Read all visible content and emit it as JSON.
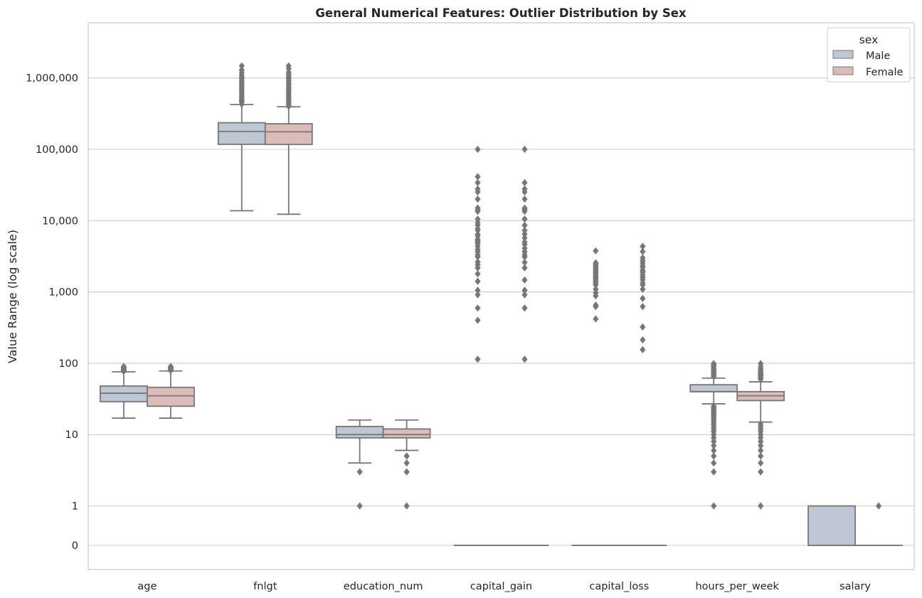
{
  "chart_data": {
    "type": "box",
    "title": "General Numerical Features: Outlier Distribution by Sex",
    "xlabel": "",
    "ylabel": "Value Range (log scale)",
    "yscale": "symlog",
    "grid": true,
    "legend": {
      "title": "sex",
      "placement": "top-right",
      "entries": [
        {
          "name": "Male",
          "color": "#bfc6d4"
        },
        {
          "name": "Female",
          "color": "#dcbcb9"
        }
      ]
    },
    "y_ticks": [
      {
        "value": 0,
        "label": "0"
      },
      {
        "value": 1,
        "label": "1"
      },
      {
        "value": 10,
        "label": "10"
      },
      {
        "value": 100,
        "label": "100"
      },
      {
        "value": 1000,
        "label": "1,000"
      },
      {
        "value": 10000,
        "label": "10,000"
      },
      {
        "value": 100000,
        "label": "100,000"
      },
      {
        "value": 1000000,
        "label": "1,000,000"
      }
    ],
    "categories": [
      "age",
      "fnlgt",
      "education_num",
      "capital_gain",
      "capital_loss",
      "hours_per_week",
      "salary"
    ],
    "series": [
      {
        "name": "Male",
        "boxes": [
          {
            "whislo": 17,
            "q1": 29,
            "med": 38,
            "q3": 48,
            "whishi": 76,
            "fliers": [
              77,
              78,
              79,
              80,
              81,
              82,
              83,
              84,
              85,
              86,
              87,
              88,
              90
            ]
          },
          {
            "whislo": 13769,
            "q1": 117500,
            "med": 178000,
            "q3": 236000,
            "whishi": 425000,
            "fliers": [
              430000,
              460000,
              480000,
              500000,
              530000,
              560000,
              600000,
              640000,
              680000,
              720000,
              760000,
              810000,
              860000,
              920000,
              980000,
              1030000,
              1100000,
              1200000,
              1300000,
              1480000
            ]
          },
          {
            "whislo": 4,
            "q1": 9,
            "med": 10,
            "q3": 13,
            "whishi": 16,
            "fliers": [
              3,
              1
            ]
          },
          {
            "whislo": 0,
            "q1": 0,
            "med": 0,
            "q3": 0,
            "whishi": 0,
            "fliers": [
              114,
              401,
              594,
              914,
              1055,
              1409,
              1797,
              2174,
              2407,
              2635,
              3103,
              3325,
              3674,
              3942,
              4386,
              4787,
              5013,
              5178,
              5455,
              6097,
              6418,
              7298,
              7688,
              8614,
              9386,
              10520,
              13550,
              14084,
              15024,
              20051,
              25236,
              27828,
              34095,
              41310,
              99999
            ]
          },
          {
            "whislo": 0,
            "q1": 0,
            "med": 0,
            "q3": 0,
            "whishi": 0,
            "fliers": [
              419,
              625,
              653,
              880,
              974,
              1092,
              1258,
              1340,
              1408,
              1485,
              1564,
              1602,
              1669,
              1740,
              1848,
              1902,
              1977,
              2042,
              2149,
              2258,
              2352,
              2444,
              2559,
              3770
            ]
          },
          {
            "whislo": 27,
            "q1": 40,
            "med": 40,
            "q3": 50,
            "whishi": 62,
            "fliers": [
              1,
              3,
              4,
              5,
              6,
              7,
              8,
              9,
              10,
              11,
              12,
              13,
              14,
              15,
              16,
              17,
              18,
              19,
              20,
              21,
              22,
              23,
              24,
              25,
              65,
              68,
              70,
              72,
              75,
              78,
              80,
              84,
              89,
              92,
              96,
              99
            ]
          },
          {
            "whislo": 0,
            "q1": 0,
            "med": 0,
            "q3": 1,
            "whishi": 1,
            "fliers": []
          }
        ]
      },
      {
        "name": "Female",
        "boxes": [
          {
            "whislo": 17,
            "q1": 25,
            "med": 35,
            "q3": 46,
            "whishi": 78,
            "fliers": [
              79,
              80,
              81,
              82,
              84,
              85,
              86,
              88,
              90
            ]
          },
          {
            "whislo": 12285,
            "q1": 117000,
            "med": 176000,
            "q3": 228000,
            "whishi": 395000,
            "fliers": [
              400000,
              420000,
              450000,
              480000,
              510000,
              540000,
              580000,
              620000,
              660000,
              700000,
              750000,
              800000,
              860000,
              920000,
              980000,
              1040000,
              1120000,
              1200000,
              1350000,
              1480000
            ]
          },
          {
            "whislo": 6,
            "q1": 9,
            "med": 10,
            "q3": 12,
            "whishi": 16,
            "fliers": [
              5,
              4,
              3,
              1
            ]
          },
          {
            "whislo": 0,
            "q1": 0,
            "med": 0,
            "q3": 0,
            "whishi": 0,
            "fliers": [
              114,
              594,
              914,
              1055,
              1471,
              2174,
              2597,
              3103,
              3325,
              3674,
              4101,
              4650,
              5013,
              5721,
              6497,
              7298,
              8614,
              10520,
              13550,
              14344,
              15024,
              20051,
              25236,
              27828,
              34095,
              99999
            ]
          },
          {
            "whislo": 0,
            "q1": 0,
            "med": 0,
            "q3": 0,
            "whishi": 0,
            "fliers": [
              155,
              213,
              323,
              625,
              810,
              1092,
              1258,
              1340,
              1485,
              1602,
              1719,
              1876,
              1980,
              2001,
              2205,
              2339,
              2547,
              2754,
              3004,
              3683,
              4356
            ]
          },
          {
            "whislo": 15,
            "q1": 30,
            "med": 35,
            "q3": 40,
            "whishi": 55,
            "fliers": [
              1,
              3,
              4,
              5,
              6,
              7,
              8,
              9,
              10,
              11,
              12,
              13,
              14,
              60,
              62,
              65,
              68,
              70,
              72,
              75,
              80,
              84,
              90,
              99
            ]
          },
          {
            "whislo": 0,
            "q1": 0,
            "med": 0,
            "q3": 0,
            "whishi": 0,
            "fliers": [
              1
            ]
          }
        ]
      }
    ]
  },
  "colors": {
    "male_fill": "#bfc6d4",
    "female_fill": "#dcbcb9",
    "line": "#777777",
    "grid": "#cccccc",
    "spine": "#cccccc"
  }
}
